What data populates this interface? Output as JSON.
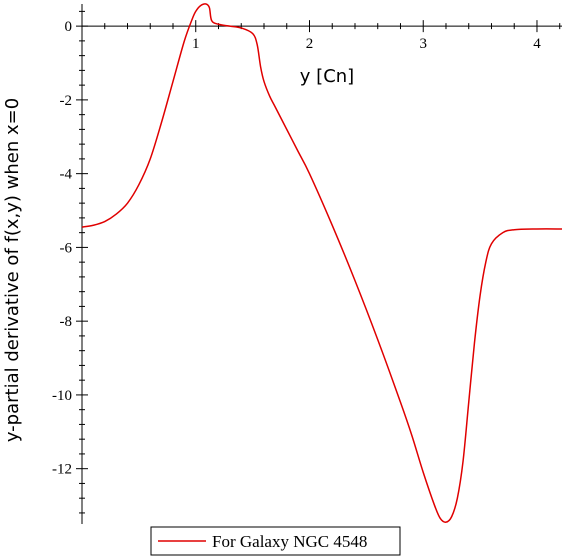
{
  "chart_data": {
    "type": "line",
    "title": "",
    "xlabel": "y [Cn]",
    "ylabel": "y-partial derivative of f(x,y) when x=0",
    "xlim": [
      0,
      4.22
    ],
    "ylim": [
      -13.5,
      0.6
    ],
    "x_ticks": [
      1,
      2,
      3,
      4
    ],
    "x_tick_labels": [
      "1",
      "2",
      "3",
      "4"
    ],
    "y_ticks": [
      0,
      -2,
      -4,
      -6,
      -8,
      -10,
      -12
    ],
    "y_tick_labels": [
      "0",
      "-2",
      "-4",
      "-6",
      "-8",
      "-10",
      "-12"
    ],
    "grid": false,
    "legend_position": "bottom-center",
    "series": [
      {
        "name": "For Galaxy NGC 4548",
        "color": "#e00000",
        "x": [
          0,
          0.1,
          0.2,
          0.3,
          0.4,
          0.5,
          0.6,
          0.7,
          0.8,
          0.9,
          0.97,
          1.0,
          1.04,
          1.09,
          1.12,
          1.14,
          1.2,
          1.3,
          1.4,
          1.5,
          1.54,
          1.57,
          1.6,
          1.65,
          1.7,
          1.8,
          1.9,
          2.0,
          2.2,
          2.4,
          2.6,
          2.8,
          2.9,
          3.0,
          3.1,
          3.15,
          3.2,
          3.25,
          3.3,
          3.35,
          3.4,
          3.45,
          3.5,
          3.55,
          3.6,
          3.7,
          3.8,
          4.0,
          4.22
        ],
        "y": [
          -5.45,
          -5.4,
          -5.3,
          -5.1,
          -4.8,
          -4.3,
          -3.6,
          -2.6,
          -1.5,
          -0.4,
          0.2,
          0.4,
          0.55,
          0.6,
          0.5,
          0.15,
          0.05,
          0.0,
          -0.05,
          -0.2,
          -0.5,
          -1.1,
          -1.5,
          -1.9,
          -2.2,
          -2.8,
          -3.4,
          -4.0,
          -5.4,
          -6.9,
          -8.5,
          -10.2,
          -11.1,
          -12.1,
          -13.0,
          -13.35,
          -13.45,
          -13.3,
          -12.8,
          -11.8,
          -10.2,
          -8.6,
          -7.3,
          -6.4,
          -5.9,
          -5.6,
          -5.52,
          -5.5,
          -5.5
        ]
      }
    ]
  }
}
